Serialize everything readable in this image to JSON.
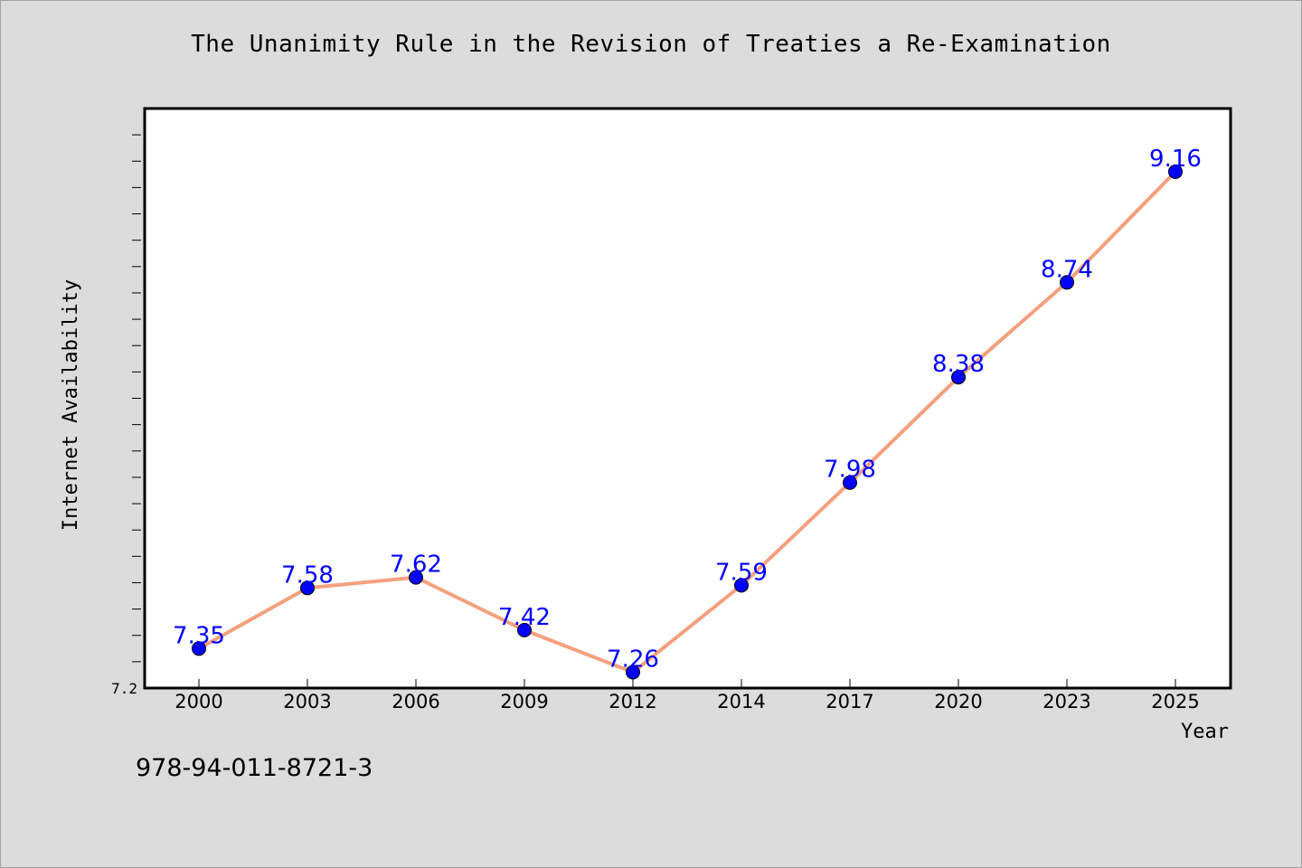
{
  "chart_data": {
    "type": "line",
    "title": "The Unanimity Rule in the Revision of Treaties a Re-Examination",
    "xlabel": "Year",
    "ylabel": "Internet Availability",
    "categories": [
      "2000",
      "2003",
      "2006",
      "2009",
      "2012",
      "2014",
      "2017",
      "2020",
      "2023",
      "2025"
    ],
    "series": [
      {
        "values": [
          7.35,
          7.58,
          7.62,
          7.42,
          7.26,
          7.59,
          7.98,
          8.38,
          8.74,
          9.16
        ],
        "data_labels": [
          "7.35",
          "7.58",
          "7.62",
          "7.42",
          "7.26",
          "7.59",
          "7.98",
          "8.38",
          "8.74",
          "9.16"
        ]
      }
    ],
    "ylim": [
      7.2,
      9.4
    ],
    "y_tick_labels": [
      "7.2"
    ],
    "grid": false,
    "colors": {
      "line": "#f4a07e",
      "marker": "#0000ff",
      "label": "#0000ff",
      "plot_bg": "#ffffff",
      "page_bg": "#dcdcdc"
    }
  },
  "footer": {
    "isbn": "978-94-011-8721-3"
  }
}
